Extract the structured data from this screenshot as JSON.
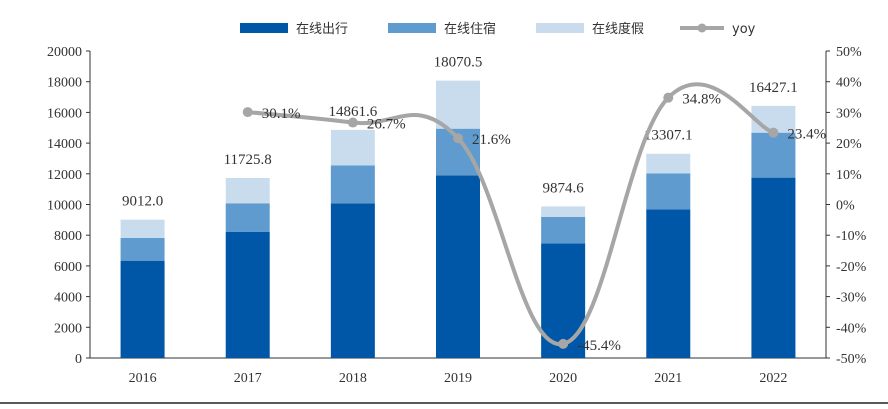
{
  "chart_data": {
    "type": "bar",
    "stacked": true,
    "categories": [
      "2016",
      "2017",
      "2018",
      "2019",
      "2020",
      "2021",
      "2022"
    ],
    "series": [
      {
        "name": "在线出行",
        "color": "#0057A8",
        "values": [
          6340,
          8210,
          10080,
          11900,
          7470,
          9690,
          11750
        ]
      },
      {
        "name": "在线住宿",
        "color": "#5F9BCE",
        "values": [
          1480,
          1870,
          2470,
          3040,
          1730,
          2340,
          2930
        ]
      },
      {
        "name": "在线度假",
        "color": "#C9DCEE",
        "values": [
          1192.0,
          1645.8,
          2311.6,
          3130.5,
          674.6,
          1277.1,
          1747.1
        ]
      }
    ],
    "totals": [
      "9012.0",
      "11725.8",
      "14861.6",
      "18070.5",
      "9874.6",
      "13307.1",
      "16427.1"
    ],
    "line": {
      "name": "yoy",
      "type": "line",
      "axis": "right",
      "color": "#A6A6A6",
      "values": [
        null,
        30.1,
        26.7,
        21.6,
        -45.4,
        34.8,
        23.4
      ],
      "labels": [
        "",
        "30.1%",
        "26.7%",
        "21.6%",
        "-45.4%",
        "34.8%",
        "23.4%"
      ]
    },
    "left_axis": {
      "ylim": [
        0,
        20000
      ],
      "ticks": [
        "0",
        "2000",
        "4000",
        "6000",
        "8000",
        "10000",
        "12000",
        "14000",
        "16000",
        "18000",
        "20000"
      ]
    },
    "right_axis": {
      "ylim": [
        -50,
        50
      ],
      "ticks": [
        "-50%",
        "-40%",
        "-30%",
        "-20%",
        "-10%",
        "0%",
        "10%",
        "20%",
        "30%",
        "40%",
        "50%"
      ]
    },
    "legend_position": "top",
    "grid": false
  }
}
